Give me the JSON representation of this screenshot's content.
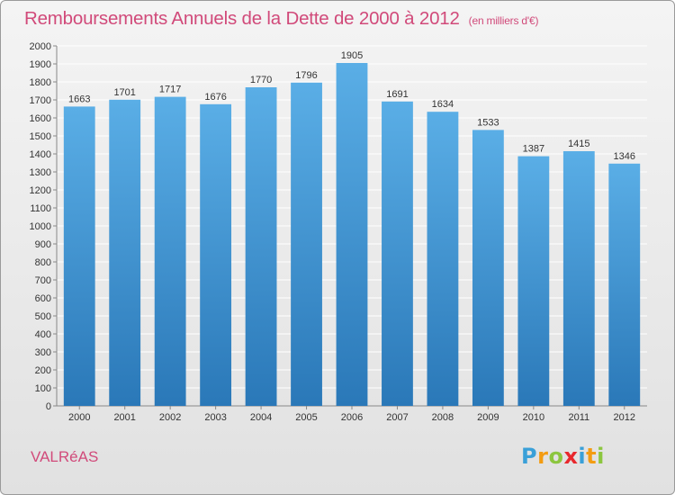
{
  "title": "Remboursements Annuels de la Dette de 2000 à 2012",
  "subtitle": "(en milliers d'€)",
  "place": "VALRéAS",
  "logo": {
    "letters": [
      "P",
      "r",
      "o",
      "x",
      "i",
      "t",
      "i"
    ],
    "colors": [
      "#3aa0d8",
      "#f39c12",
      "#8cc63f",
      "#e8282d",
      "#3aa0d8",
      "#f39c12",
      "#8cc63f"
    ]
  },
  "colors": {
    "bar_top": "#5aaee6",
    "bar_bottom": "#2a78b8",
    "grid": "#ffffff",
    "text": "#333333",
    "accent": "#d14a7a"
  },
  "chart_data": {
    "type": "bar",
    "categories": [
      "2000",
      "2001",
      "2002",
      "2003",
      "2004",
      "2005",
      "2006",
      "2007",
      "2008",
      "2009",
      "2010",
      "2011",
      "2012"
    ],
    "values": [
      1663,
      1701,
      1717,
      1676,
      1770,
      1796,
      1905,
      1691,
      1634,
      1533,
      1387,
      1415,
      1346
    ],
    "title": "Remboursements Annuels de la Dette de 2000 à 2012",
    "subtitle": "(en milliers d'€)",
    "ylim": [
      0,
      2000
    ],
    "ytick_step": 100,
    "grid": true,
    "data_labels": true
  }
}
